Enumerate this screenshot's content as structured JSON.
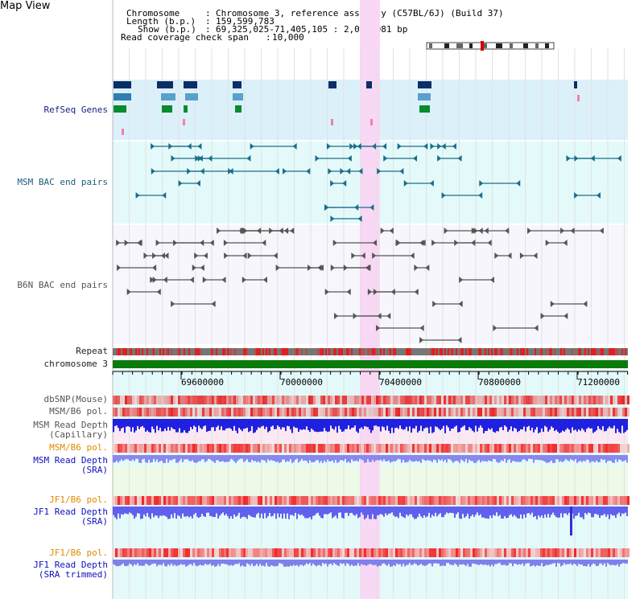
{
  "page": {
    "title": "Map View"
  },
  "header": {
    "chromosome_label": "Chromosome",
    "chromosome_value": "Chromosome 3, reference assembly (C57BL/6J) (Build 37)",
    "length_label": "Length (b.p.)",
    "length_value": "159,599,783",
    "show_label": "Show (b.p.)",
    "show_value": "69,325,025-71,405,105 : 2,080,081 bp",
    "coverage_label": "Read coverage check span",
    "coverage_value": "10,000"
  },
  "tracks": {
    "refseq": "RefSeq Genes",
    "msm_bac": "MSM BAC end pairs",
    "b6n_bac": "B6N BAC end pairs",
    "repeat": "Repeat",
    "chromosome": "chromosome 3",
    "dbsnp": "dbSNP(Mouse)",
    "msm_b6_pol_1": "MSM/B6 pol.",
    "msm_depth_cap_1": "MSM Read Depth",
    "msm_depth_cap_2": "(Capillary)",
    "msm_b6_pol_2": "MSM/B6 pol.",
    "msm_depth_sra_1": "MSM Read Depth",
    "msm_depth_sra_2": "(SRA)",
    "jf1_b6_pol_1": "JF1/B6 pol.",
    "jf1_depth_sra_1": "JF1 Read Depth",
    "jf1_depth_sra_2": "(SRA)",
    "jf1_b6_pol_2": "JF1/B6 pol.",
    "jf1_depth_trim_1": "JF1 Read Depth",
    "jf1_depth_trim_2": "(SRA trimmed)"
  },
  "ruler": {
    "ticks": [
      "69600000",
      "70000000",
      "70400000",
      "70800000",
      "71200000"
    ]
  },
  "colors": {
    "highlight": "#f8d8f4",
    "refseq_bg": "#dcf0fa",
    "msm_bg": "#e4fafa",
    "b6n_bg": "#f6f6fc",
    "chrom": "#0a7a0a",
    "depth_blue": "#2020e0",
    "depth_light": "#8080f0"
  }
}
